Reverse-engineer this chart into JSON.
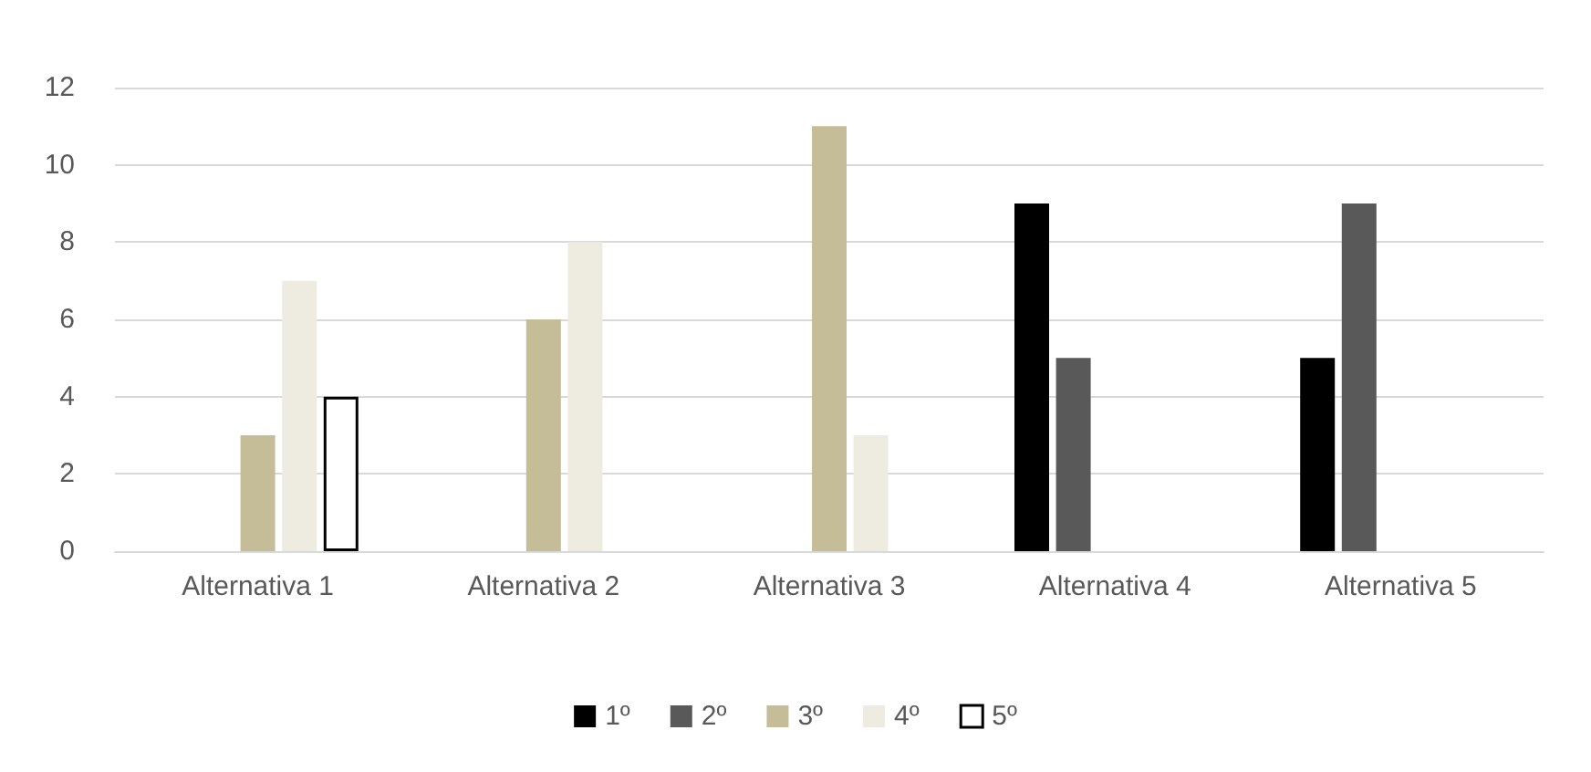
{
  "chart_data": {
    "type": "bar",
    "categories": [
      "Alternativa 1",
      "Alternativa 2",
      "Alternativa 3",
      "Alternativa 4",
      "Alternativa 5"
    ],
    "series": [
      {
        "name": "1º",
        "color": "#000000",
        "values": [
          null,
          null,
          null,
          9,
          5
        ]
      },
      {
        "name": "2º",
        "color": "#595959",
        "values": [
          null,
          null,
          null,
          5,
          9
        ]
      },
      {
        "name": "3º",
        "color": "#c4bd97",
        "values": [
          3,
          6,
          11,
          null,
          null
        ]
      },
      {
        "name": "4º",
        "color": "#eeece1",
        "values": [
          7,
          8,
          3,
          null,
          null
        ]
      },
      {
        "name": "5º",
        "color": "#ffffff",
        "values": [
          4,
          null,
          null,
          null,
          null
        ]
      }
    ],
    "ylim": [
      0,
      12
    ],
    "yticks": [
      0,
      2,
      4,
      6,
      8,
      10,
      12
    ],
    "grid": "y",
    "legend": "bottom"
  }
}
